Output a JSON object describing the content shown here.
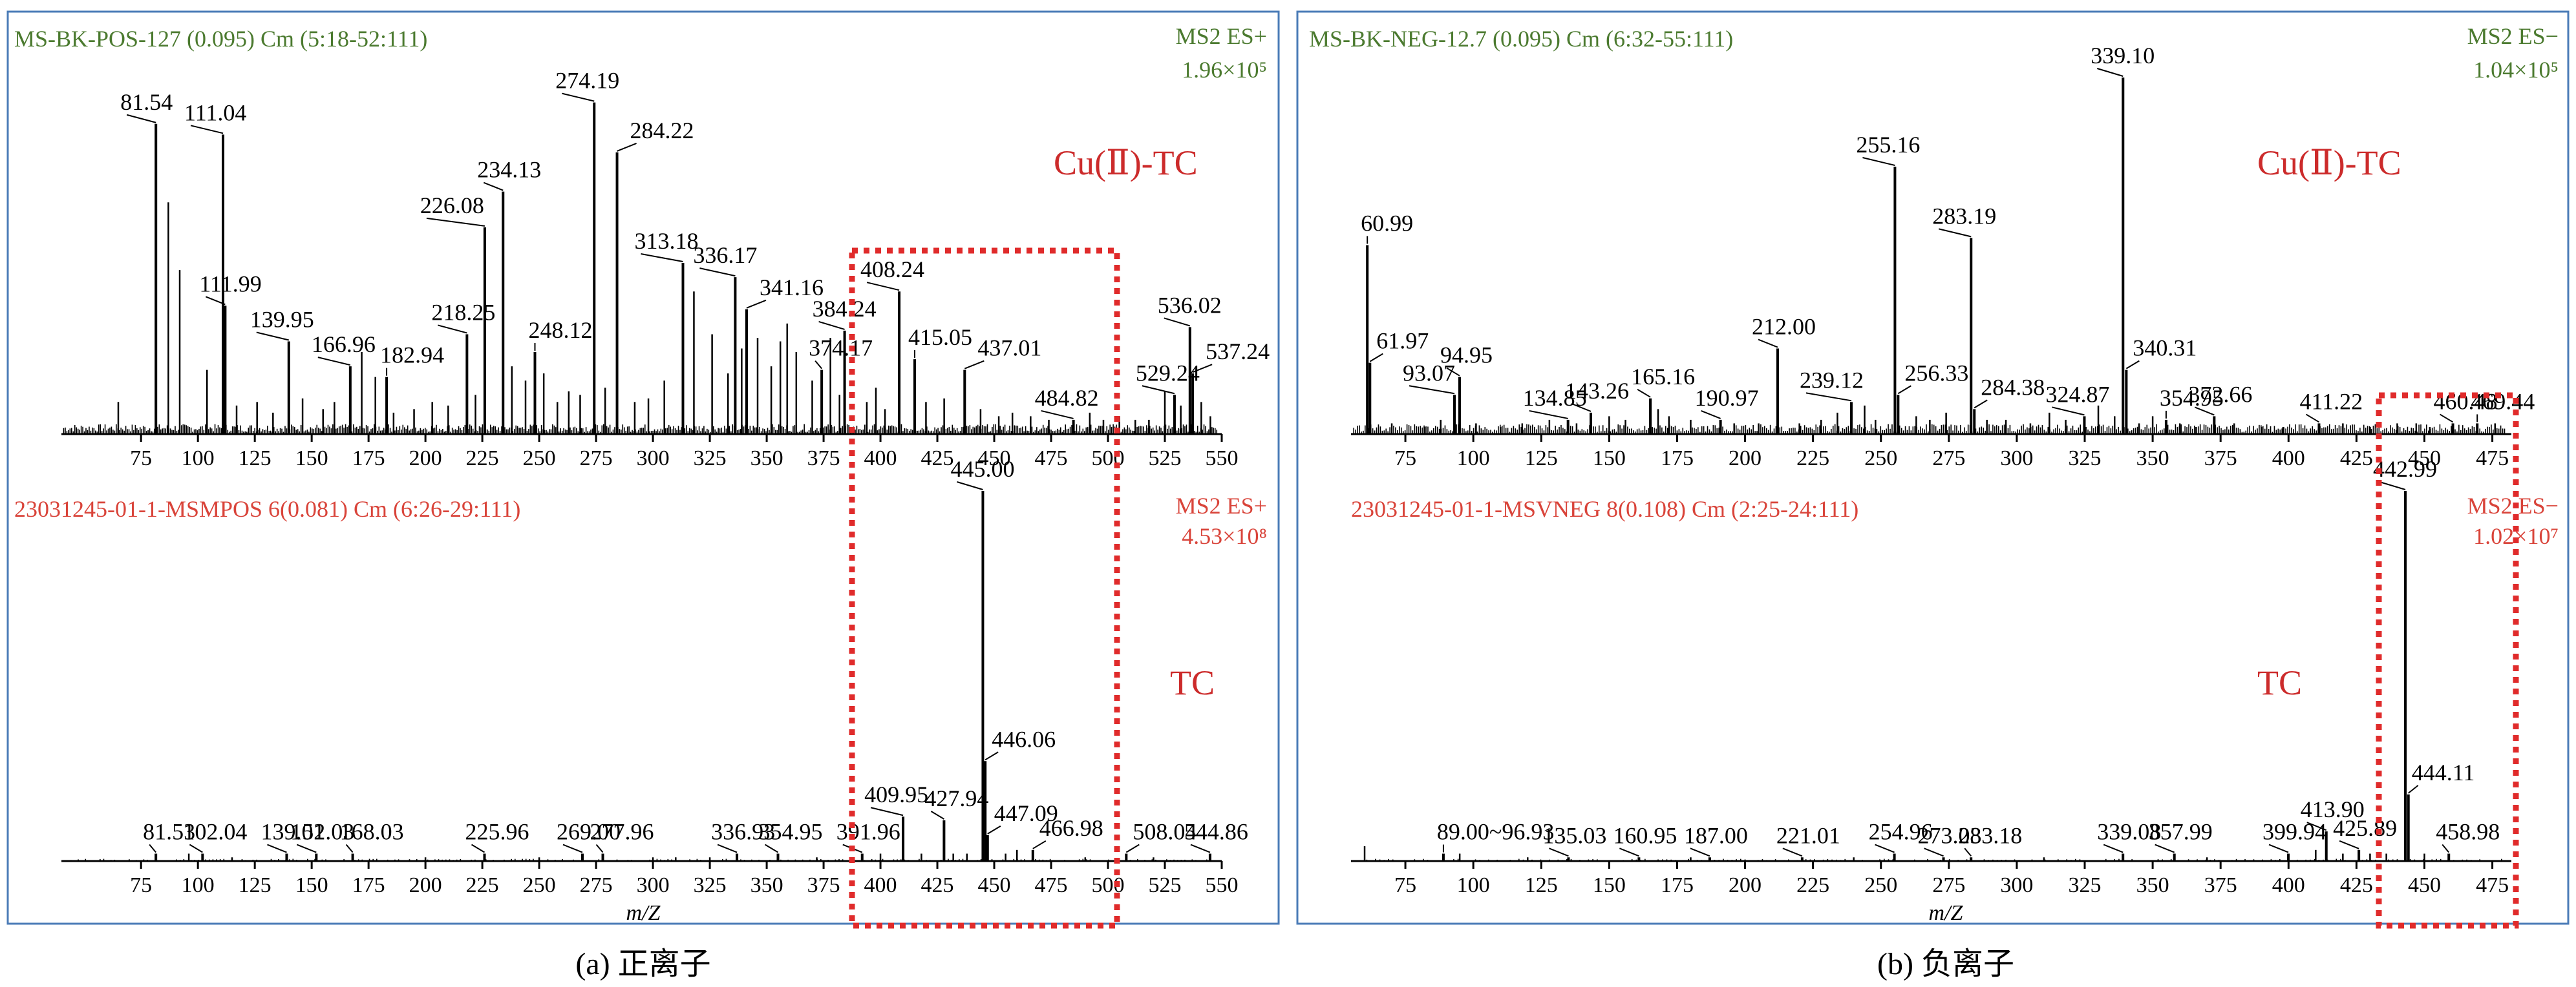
{
  "colors": {
    "frame": "#4a7bb7",
    "header_green": "#4b7a2f",
    "header_red": "#d9443a",
    "compound_red": "#cc2b2b",
    "highlight_box": "#e02b2b"
  },
  "chart_data": [
    {
      "type": "bar",
      "panel": "a",
      "position": "top",
      "title": "MS-BK-POS-127 (0.095) Cm (5:18-52:111)",
      "mode": "MS2 ES+",
      "intensity": "1.96×10⁵",
      "compound": "Cu(Ⅱ)-TC",
      "xlabel": "",
      "xlim": [
        40,
        550
      ],
      "ylim": [
        0,
        100
      ],
      "xticks": [
        "75",
        "100",
        "125",
        "150",
        "175",
        "200",
        "225",
        "250",
        "275",
        "300",
        "325",
        "350",
        "375",
        "400",
        "425",
        "450",
        "475",
        "500",
        "525",
        "550"
      ],
      "peaks": [
        {
          "mz": 81.54,
          "rel": 87,
          "label": "81.54",
          "lx": -55
        },
        {
          "mz": 111.04,
          "rel": 84,
          "label": "111.04",
          "lx": -60
        },
        {
          "mz": 111.99,
          "rel": 36,
          "label": "111.99"
        },
        {
          "mz": 139.95,
          "rel": 26,
          "label": "139.95",
          "lx": -60
        },
        {
          "mz": 166.96,
          "rel": 19,
          "label": "166.96",
          "lx": -60
        },
        {
          "mz": 182.94,
          "rel": 16,
          "label": "182.94",
          "lx": -10
        },
        {
          "mz": 218.25,
          "rel": 28,
          "label": "218.25",
          "lx": -55
        },
        {
          "mz": 226.08,
          "rel": 58,
          "label": "226.08",
          "lx": -100
        },
        {
          "mz": 234.13,
          "rel": 68,
          "label": "234.13",
          "lx": -40
        },
        {
          "mz": 248.12,
          "rel": 23,
          "label": "248.12",
          "lx": -10
        },
        {
          "mz": 274.19,
          "rel": 93,
          "label": "274.19",
          "lx": -60
        },
        {
          "mz": 284.22,
          "rel": 79,
          "label": "284.22",
          "lx": 20
        },
        {
          "mz": 313.18,
          "rel": 48,
          "label": "313.18",
          "lx": -75
        },
        {
          "mz": 336.17,
          "rel": 44,
          "label": "336.17",
          "lx": -65
        },
        {
          "mz": 341.16,
          "rel": 35,
          "label": "341.16",
          "lx": 20
        },
        {
          "mz": 384.24,
          "rel": 29,
          "label": "384.24",
          "lx": -50
        },
        {
          "mz": 374.17,
          "rel": 18,
          "label": "374.17",
          "lx": -20
        },
        {
          "mz": 408.24,
          "rel": 40,
          "label": "408.24",
          "lx": -60
        },
        {
          "mz": 415.05,
          "rel": 21,
          "label": "415.05",
          "lx": -10
        },
        {
          "mz": 437.01,
          "rel": 18,
          "label": "437.01",
          "lx": 20
        },
        {
          "mz": 484.82,
          "rel": 4,
          "label": "484.82",
          "lx": -60
        },
        {
          "mz": 529.24,
          "rel": 11,
          "label": "529.24",
          "lx": -60
        },
        {
          "mz": 536.02,
          "rel": 30,
          "label": "536.02",
          "lx": -50
        },
        {
          "mz": 537.24,
          "rel": 17,
          "label": "537.24",
          "lx": 20
        }
      ],
      "minor_peaks": [
        [
          65,
          9
        ],
        [
          87,
          65
        ],
        [
          92,
          46
        ],
        [
          104,
          18
        ],
        [
          117,
          8
        ],
        [
          126,
          9
        ],
        [
          133,
          6
        ],
        [
          146,
          10
        ],
        [
          155,
          7
        ],
        [
          160,
          9
        ],
        [
          172,
          23
        ],
        [
          178,
          16
        ],
        [
          186,
          6
        ],
        [
          195,
          7
        ],
        [
          203,
          9
        ],
        [
          210,
          8
        ],
        [
          222,
          11
        ],
        [
          238,
          19
        ],
        [
          244,
          15
        ],
        [
          252,
          17
        ],
        [
          258,
          9
        ],
        [
          263,
          12
        ],
        [
          268,
          11
        ],
        [
          279,
          13
        ],
        [
          292,
          9
        ],
        [
          298,
          10
        ],
        [
          305,
          15
        ],
        [
          318,
          40
        ],
        [
          326,
          28
        ],
        [
          333,
          17
        ],
        [
          339,
          24
        ],
        [
          346,
          27
        ],
        [
          352,
          19
        ],
        [
          356,
          26
        ],
        [
          359,
          31
        ],
        [
          363,
          23
        ],
        [
          370,
          15
        ],
        [
          378,
          27
        ],
        [
          382,
          11
        ],
        [
          394,
          9
        ],
        [
          398,
          13
        ],
        [
          402,
          7
        ],
        [
          420,
          9
        ],
        [
          428,
          10
        ],
        [
          444,
          7
        ],
        [
          452,
          5
        ],
        [
          458,
          6
        ],
        [
          466,
          5
        ],
        [
          474,
          4
        ],
        [
          492,
          6
        ],
        [
          498,
          4
        ],
        [
          505,
          5
        ],
        [
          512,
          4
        ],
        [
          518,
          4
        ],
        [
          525,
          12
        ],
        [
          532,
          8
        ],
        [
          541,
          9
        ],
        [
          545,
          5
        ]
      ]
    },
    {
      "type": "bar",
      "panel": "a",
      "position": "bottom",
      "title": "23031245-01-1-MSMPOS 6(0.081) Cm (6:26-29:111)",
      "mode": "MS2 ES+",
      "intensity": "4.53×10⁸",
      "compound": "TC",
      "xlabel": "m/Z",
      "xlim": [
        40,
        550
      ],
      "ylim": [
        0,
        100
      ],
      "xticks": [
        "75",
        "100",
        "125",
        "150",
        "175",
        "200",
        "225",
        "250",
        "275",
        "300",
        "325",
        "350",
        "375",
        "400",
        "425",
        "450",
        "475",
        "500",
        "525",
        "550"
      ],
      "peaks": [
        {
          "mz": 81.53,
          "rel": 2,
          "label": "81.53",
          "lx": -20
        },
        {
          "mz": 102.04,
          "rel": 2,
          "label": "102.04",
          "lx": -30
        },
        {
          "mz": 139.01,
          "rel": 2,
          "label": "139.01",
          "lx": -40
        },
        {
          "mz": 152.03,
          "rel": 2,
          "label": "152.03",
          "lx": -40
        },
        {
          "mz": 168.03,
          "rel": 2,
          "label": "168.03",
          "lx": -20
        },
        {
          "mz": 225.96,
          "rel": 2,
          "label": "225.96",
          "lx": -30
        },
        {
          "mz": 269.0,
          "rel": 2,
          "label": "269.00",
          "lx": -40
        },
        {
          "mz": 277.96,
          "rel": 2,
          "label": "277.96",
          "lx": -20
        },
        {
          "mz": 336.93,
          "rel": 2,
          "label": "336.93",
          "lx": -40
        },
        {
          "mz": 354.95,
          "rel": 2,
          "label": "354.95",
          "lx": -30
        },
        {
          "mz": 391.96,
          "rel": 2,
          "label": "391.96",
          "lx": -40
        },
        {
          "mz": 409.95,
          "rel": 12,
          "label": "409.95",
          "lx": -60
        },
        {
          "mz": 427.94,
          "rel": 11,
          "label": "427.94",
          "lx": -30
        },
        {
          "mz": 445.0,
          "rel": 100,
          "label": "445.00",
          "lx": -50
        },
        {
          "mz": 446.06,
          "rel": 27,
          "label": "446.06",
          "lx": 10
        },
        {
          "mz": 447.09,
          "rel": 7,
          "label": "447.09",
          "lx": 10
        },
        {
          "mz": 466.98,
          "rel": 3,
          "label": "466.98",
          "lx": 10
        },
        {
          "mz": 508.04,
          "rel": 2,
          "label": "508.04",
          "lx": 10
        },
        {
          "mz": 544.86,
          "rel": 2,
          "label": "544.86",
          "lx": -40
        }
      ],
      "minor_peaks": [
        [
          96,
          2
        ],
        [
          115,
          1
        ],
        [
          200,
          1
        ],
        [
          250,
          1
        ],
        [
          300,
          1
        ],
        [
          310,
          1
        ],
        [
          325,
          1
        ],
        [
          372,
          1
        ],
        [
          400,
          2
        ],
        [
          418,
          2
        ],
        [
          432,
          2
        ],
        [
          438,
          2
        ],
        [
          455,
          2
        ],
        [
          460,
          3
        ],
        [
          490,
          1
        ],
        [
          520,
          1
        ]
      ]
    },
    {
      "type": "bar",
      "panel": "b",
      "position": "top",
      "title": "MS-BK-NEG-12.7 (0.095) Cm (6:32-55:111)",
      "mode": "MS2 ES−",
      "intensity": "1.04×10⁵",
      "compound": "Cu(Ⅱ)-TC",
      "xlabel": "",
      "xlim": [
        55,
        482
      ],
      "ylim": [
        0,
        100
      ],
      "xticks": [
        "75",
        "100",
        "125",
        "150",
        "175",
        "200",
        "225",
        "250",
        "275",
        "300",
        "325",
        "350",
        "375",
        "400",
        "425",
        "450",
        "475"
      ],
      "peaks": [
        {
          "mz": 60.99,
          "rel": 53,
          "label": "60.99",
          "lx": -10
        },
        {
          "mz": 61.97,
          "rel": 20,
          "label": "61.97",
          "lx": 10
        },
        {
          "mz": 93.07,
          "rel": 11,
          "label": "93.07",
          "lx": -80
        },
        {
          "mz": 94.95,
          "rel": 16,
          "label": "94.95",
          "lx": -30
        },
        {
          "mz": 134.85,
          "rel": 4,
          "label": "134.85",
          "lx": -70
        },
        {
          "mz": 143.26,
          "rel": 6,
          "label": "143.26",
          "lx": -40
        },
        {
          "mz": 165.16,
          "rel": 10,
          "label": "165.16",
          "lx": -30
        },
        {
          "mz": 190.97,
          "rel": 4,
          "label": "190.97",
          "lx": -40
        },
        {
          "mz": 212.0,
          "rel": 24,
          "label": "212.00",
          "lx": -40
        },
        {
          "mz": 239.12,
          "rel": 9,
          "label": "239.12",
          "lx": -80
        },
        {
          "mz": 255.16,
          "rel": 75,
          "label": "255.16",
          "lx": -60
        },
        {
          "mz": 256.33,
          "rel": 11,
          "label": "256.33",
          "lx": 10
        },
        {
          "mz": 283.19,
          "rel": 55,
          "label": "283.19",
          "lx": -60
        },
        {
          "mz": 284.38,
          "rel": 7,
          "label": "284.38",
          "lx": 10
        },
        {
          "mz": 324.87,
          "rel": 5,
          "label": "324.87",
          "lx": -60
        },
        {
          "mz": 339.1,
          "rel": 100,
          "label": "339.10",
          "lx": -50
        },
        {
          "mz": 340.31,
          "rel": 18,
          "label": "340.31",
          "lx": 10
        },
        {
          "mz": 354.95,
          "rel": 4,
          "label": "354.95",
          "lx": -10
        },
        {
          "mz": 372.66,
          "rel": 5,
          "label": "372.66",
          "lx": -40
        },
        {
          "mz": 411.22,
          "rel": 3,
          "label": "411.22",
          "lx": -30
        },
        {
          "mz": 460.48,
          "rel": 3,
          "label": "460.48",
          "lx": -30
        },
        {
          "mz": 469.44,
          "rel": 3,
          "label": "469.44",
          "lx": -10
        }
      ],
      "minor_peaks": [
        [
          70,
          3
        ],
        [
          82,
          2
        ],
        [
          88,
          4
        ],
        [
          101,
          3
        ],
        [
          110,
          2
        ],
        [
          118,
          3
        ],
        [
          128,
          4
        ],
        [
          138,
          3
        ],
        [
          150,
          5
        ],
        [
          156,
          4
        ],
        [
          168,
          7
        ],
        [
          172,
          5
        ],
        [
          180,
          4
        ],
        [
          196,
          3
        ],
        [
          205,
          3
        ],
        [
          220,
          3
        ],
        [
          228,
          4
        ],
        [
          234,
          6
        ],
        [
          244,
          8
        ],
        [
          248,
          4
        ],
        [
          263,
          5
        ],
        [
          268,
          4
        ],
        [
          274,
          6
        ],
        [
          289,
          4
        ],
        [
          296,
          4
        ],
        [
          305,
          3
        ],
        [
          312,
          6
        ],
        [
          318,
          4
        ],
        [
          330,
          8
        ],
        [
          336,
          5
        ],
        [
          345,
          3
        ],
        [
          350,
          5
        ],
        [
          360,
          3
        ],
        [
          366,
          2
        ],
        [
          380,
          3
        ],
        [
          390,
          2
        ],
        [
          398,
          2
        ],
        [
          420,
          3
        ],
        [
          430,
          2
        ],
        [
          440,
          3
        ],
        [
          447,
          3
        ],
        [
          452,
          2
        ],
        [
          476,
          3
        ]
      ]
    },
    {
      "type": "bar",
      "panel": "b",
      "position": "bottom",
      "title": "23031245-01-1-MSVNEG 8(0.108) Cm (2:25-24:111)",
      "mode": "MS2 ES−",
      "intensity": "1.02×10⁷",
      "compound": "TC",
      "xlabel": "m/Z",
      "xlim": [
        55,
        482
      ],
      "ylim": [
        0,
        100
      ],
      "xticks": [
        "75",
        "100",
        "125",
        "150",
        "175",
        "200",
        "225",
        "250",
        "275",
        "300",
        "325",
        "350",
        "375",
        "400",
        "425",
        "450",
        "475"
      ],
      "peaks": [
        {
          "mz": 89.0,
          "rel": 2,
          "label": "89.00~96.93",
          "lx": -10
        },
        {
          "mz": 135.03,
          "rel": 1,
          "label": "135.03",
          "lx": -40
        },
        {
          "mz": 160.95,
          "rel": 1,
          "label": "160.95",
          "lx": -40
        },
        {
          "mz": 187.0,
          "rel": 1,
          "label": "187.00",
          "lx": -40
        },
        {
          "mz": 221.01,
          "rel": 1,
          "label": "221.01",
          "lx": -40
        },
        {
          "mz": 254.96,
          "rel": 2,
          "label": "254.96",
          "lx": -40
        },
        {
          "mz": 273.03,
          "rel": 1,
          "label": "273.03",
          "lx": -40
        },
        {
          "mz": 283.18,
          "rel": 1,
          "label": "283.18",
          "lx": -20
        },
        {
          "mz": 339.08,
          "rel": 2,
          "label": "339.08",
          "lx": -40
        },
        {
          "mz": 357.99,
          "rel": 2,
          "label": "357.99",
          "lx": -40
        },
        {
          "mz": 399.94,
          "rel": 2,
          "label": "399.94",
          "lx": -40
        },
        {
          "mz": 413.9,
          "rel": 8,
          "label": "413.90",
          "lx": -40
        },
        {
          "mz": 425.89,
          "rel": 3,
          "label": "425.89",
          "lx": -40
        },
        {
          "mz": 442.99,
          "rel": 100,
          "label": "442.99",
          "lx": -50
        },
        {
          "mz": 444.11,
          "rel": 18,
          "label": "444.11",
          "lx": 5
        },
        {
          "mz": 458.98,
          "rel": 2,
          "label": "458.98",
          "lx": -20
        }
      ],
      "minor_peaks": [
        [
          60,
          4
        ],
        [
          95,
          2
        ],
        [
          120,
          1
        ],
        [
          180,
          1
        ],
        [
          240,
          1
        ],
        [
          310,
          1
        ],
        [
          370,
          1
        ],
        [
          410,
          3
        ],
        [
          420,
          2
        ],
        [
          430,
          2
        ],
        [
          436,
          2
        ],
        [
          450,
          2
        ]
      ]
    }
  ],
  "captions": {
    "a": "(a) 正离子",
    "b": "(b) 负离子"
  }
}
